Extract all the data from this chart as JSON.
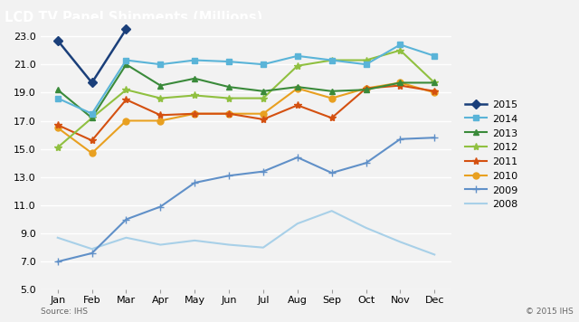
{
  "title": "LCD TV Panel Shipments (Millions)",
  "source": "Source: IHS",
  "copyright": "© 2015 IHS",
  "months": [
    "Jan",
    "Feb",
    "Mar",
    "Apr",
    "May",
    "Jun",
    "Jul",
    "Aug",
    "Sep",
    "Oct",
    "Nov",
    "Dec"
  ],
  "series": {
    "2015": {
      "values": [
        22.7,
        19.7,
        23.5,
        null,
        null,
        null,
        null,
        null,
        null,
        null,
        null,
        null
      ],
      "color": "#1a3f7a",
      "marker": "D",
      "linewidth": 1.8,
      "markersize": 5,
      "zorder": 10
    },
    "2014": {
      "values": [
        18.6,
        17.5,
        21.3,
        21.0,
        21.3,
        21.2,
        21.0,
        21.6,
        21.3,
        21.0,
        22.4,
        21.6
      ],
      "color": "#5ab4d8",
      "marker": "s",
      "linewidth": 1.5,
      "markersize": 5,
      "zorder": 9
    },
    "2013": {
      "values": [
        19.2,
        17.2,
        21.0,
        19.5,
        20.0,
        19.4,
        19.1,
        19.4,
        19.1,
        19.2,
        19.7,
        19.7
      ],
      "color": "#3a8a3a",
      "marker": "^",
      "linewidth": 1.5,
      "markersize": 5,
      "zorder": 8
    },
    "2012": {
      "values": [
        15.1,
        17.2,
        19.2,
        18.6,
        18.8,
        18.6,
        18.6,
        20.9,
        21.3,
        21.3,
        22.0,
        19.7
      ],
      "color": "#90c040",
      "marker": "*",
      "linewidth": 1.5,
      "markersize": 6,
      "zorder": 7
    },
    "2011": {
      "values": [
        16.7,
        15.6,
        18.5,
        17.4,
        17.5,
        17.5,
        17.1,
        18.1,
        17.2,
        19.3,
        19.5,
        19.1
      ],
      "color": "#d45010",
      "marker": "*",
      "linewidth": 1.5,
      "markersize": 6,
      "zorder": 6
    },
    "2010": {
      "values": [
        16.5,
        14.7,
        17.0,
        17.0,
        17.5,
        17.5,
        17.5,
        19.3,
        18.6,
        19.3,
        19.7,
        19.0
      ],
      "color": "#e8a020",
      "marker": "o",
      "linewidth": 1.5,
      "markersize": 5,
      "zorder": 5
    },
    "2009": {
      "values": [
        7.0,
        7.6,
        10.0,
        10.9,
        12.6,
        13.1,
        13.4,
        14.4,
        13.3,
        14.0,
        15.7,
        15.8
      ],
      "color": "#6090c8",
      "marker": "+",
      "linewidth": 1.5,
      "markersize": 6,
      "zorder": 4
    },
    "2008": {
      "values": [
        8.7,
        7.9,
        8.7,
        8.2,
        8.5,
        8.2,
        8.0,
        9.7,
        10.6,
        9.4,
        8.4,
        7.5
      ],
      "color": "#a8d0e8",
      "marker": "none",
      "linewidth": 1.5,
      "markersize": 0,
      "zorder": 3
    }
  },
  "ylim": [
    5.0,
    24.2
  ],
  "yticks": [
    5.0,
    7.0,
    9.0,
    11.0,
    13.0,
    15.0,
    17.0,
    19.0,
    21.0,
    23.0
  ],
  "title_bg": "#606060",
  "plot_bg": "#f2f2f2",
  "grid_color": "#ffffff",
  "title_color": "#ffffff",
  "title_fontsize": 10.5,
  "tick_fontsize": 8,
  "legend_fontsize": 8,
  "legend_order": [
    "2015",
    "2014",
    "2013",
    "2012",
    "2011",
    "2010",
    "2009",
    "2008"
  ]
}
